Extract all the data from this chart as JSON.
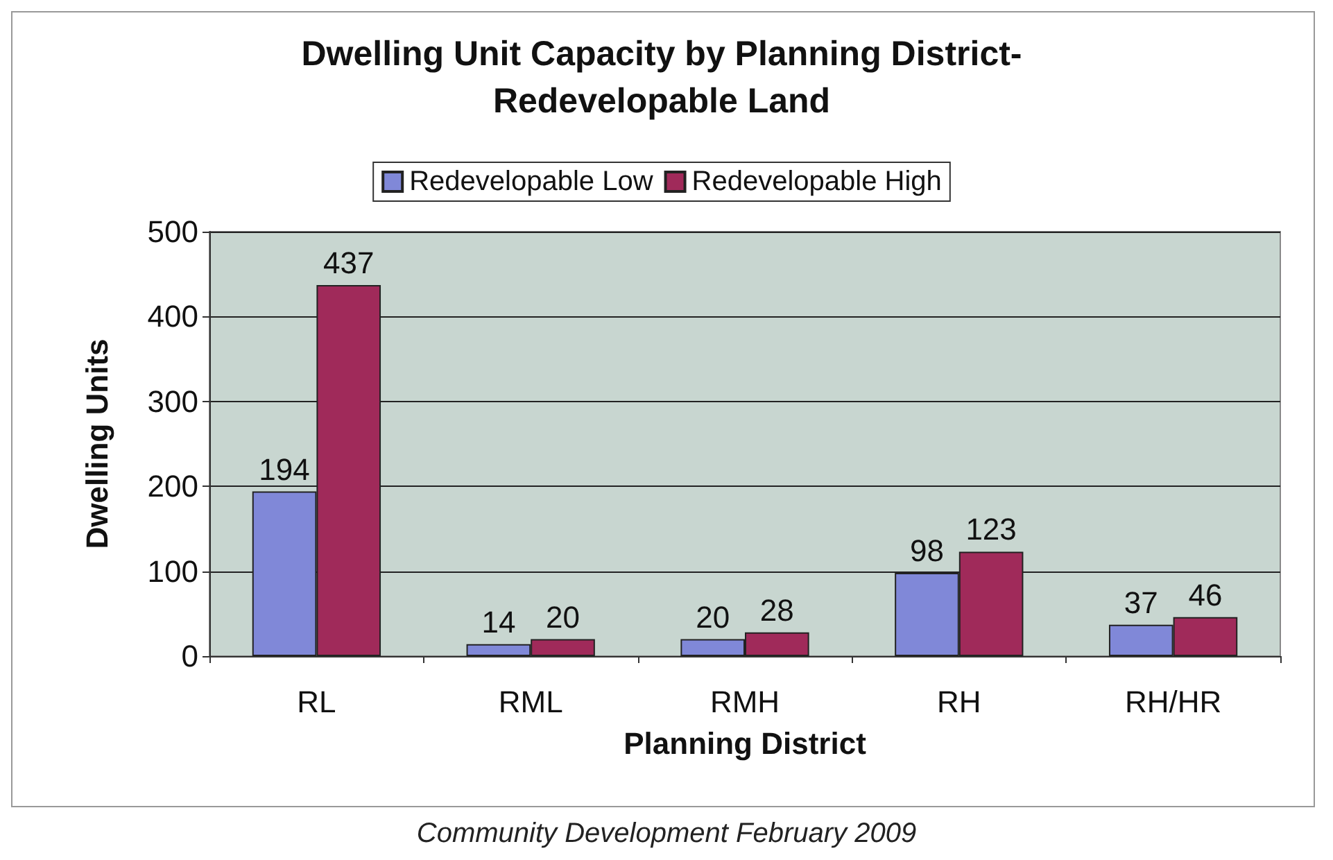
{
  "chart_data": {
    "type": "bar",
    "title": "Dwelling Unit Capacity by Planning District-\nRedevelopable Land",
    "xlabel": "Planning District",
    "ylabel": "Dwelling Units",
    "categories": [
      "RL",
      "RML",
      "RMH",
      "RH",
      "RH/HR"
    ],
    "series": [
      {
        "name": "Redevelopable Low",
        "color": "#8088d8",
        "values": [
          194,
          14,
          20,
          98,
          37
        ]
      },
      {
        "name": "Redevelopable High",
        "color": "#a02a5a",
        "values": [
          437,
          20,
          28,
          123,
          46
        ]
      }
    ],
    "ylim": [
      0,
      500
    ],
    "yticks": [
      0,
      100,
      200,
      300,
      400,
      500
    ],
    "grid": "y",
    "legend": "top",
    "data_labels": true,
    "annotations": [
      "Community Development February 2009"
    ]
  }
}
